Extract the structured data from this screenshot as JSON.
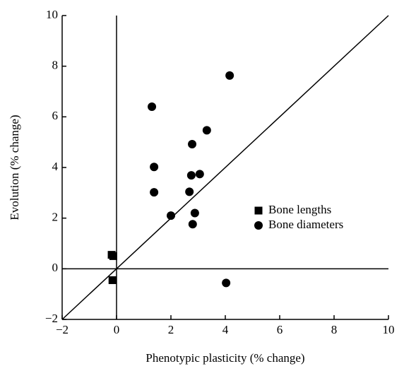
{
  "chart_data": {
    "type": "scatter",
    "x_label": "Phenotypic plasticity (% change)",
    "y_label": "Evolution (% change)",
    "xlim": [
      -2,
      10
    ],
    "ylim": [
      -2,
      10
    ],
    "xticks": [
      {
        "value": -2,
        "label": "−2"
      },
      0,
      2,
      4,
      6,
      8,
      10
    ],
    "yticks": [
      {
        "value": -2,
        "label": "−2"
      },
      0,
      2,
      4,
      6,
      8,
      10
    ],
    "zero_lines": true,
    "identity_line": true,
    "legend": "center-right",
    "series": [
      {
        "name": "Bone lengths",
        "marker": "square",
        "color": "#000000",
        "x": [
          -0.18,
          -0.12,
          -0.15
        ],
        "values": [
          0.55,
          0.5,
          -0.45
        ]
      },
      {
        "name": "Bone diameters",
        "marker": "circle",
        "color": "#000000",
        "x": [
          1.3,
          4.16,
          3.32,
          2.78,
          1.38,
          2.75,
          3.06,
          1.38,
          2.68,
          2.0,
          2.88,
          2.8,
          4.03
        ],
        "values": [
          6.4,
          7.63,
          5.47,
          4.92,
          4.02,
          3.69,
          3.74,
          3.02,
          3.04,
          2.1,
          2.2,
          1.76,
          -0.56
        ]
      }
    ]
  }
}
